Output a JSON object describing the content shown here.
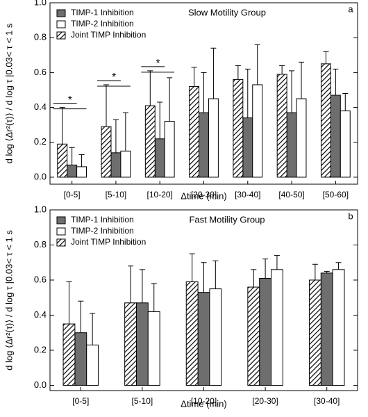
{
  "chart_data": [
    {
      "type": "bar",
      "title": "Slow Motility Group",
      "panel_label": "a",
      "x_label": "Δtime (min)",
      "y_label": "d log ⟨Δr²(τ)⟩ / d log τ |0.03< τ < 1 s",
      "categories": [
        "[0-5]",
        "[5-10]",
        "[10-20]",
        "[20-30]",
        "[30-40]",
        "[40-50]",
        "[50-60]"
      ],
      "significance": [
        "*",
        "*",
        "*",
        null,
        null,
        null,
        null
      ],
      "series": [
        {
          "name": "TIMP-1 Inhibition",
          "color": "#6e6e6e",
          "values": [
            0.07,
            0.14,
            0.22,
            0.37,
            0.34,
            0.37,
            0.47
          ],
          "errors": [
            0.1,
            0.19,
            0.21,
            0.23,
            0.28,
            0.24,
            0.15
          ]
        },
        {
          "name": "TIMP-2 Inhibition",
          "color": "#ffffff",
          "values": [
            0.06,
            0.15,
            0.32,
            0.45,
            0.53,
            0.45,
            0.38
          ],
          "errors": [
            0.07,
            0.22,
            0.25,
            0.29,
            0.23,
            0.21,
            0.1
          ]
        },
        {
          "name": "Joint TIMP Inhibition",
          "color": "#000000",
          "hatch": true,
          "values": [
            0.19,
            0.29,
            0.41,
            0.52,
            0.56,
            0.59,
            0.65
          ],
          "errors": [
            0.21,
            0.24,
            0.2,
            0.11,
            0.08,
            0.05,
            0.07
          ]
        }
      ],
      "ylim": [
        -0.04,
        1.0
      ],
      "yticks": [
        {
          "value": 0,
          "label": "0.0"
        },
        {
          "value": 0.2,
          "label": "0.2"
        },
        {
          "value": 0.4,
          "label": "0.4"
        },
        {
          "value": 0.6,
          "label": "0.6"
        },
        {
          "value": 0.8,
          "label": "0.8"
        },
        {
          "value": 1.0,
          "label": "1.0"
        }
      ]
    },
    {
      "type": "bar",
      "title": "Fast Motility Group",
      "panel_label": "b",
      "x_label": "Δtime (min)",
      "y_label": "d log ⟨Δr²(τ)⟩ / d log τ |0.03< τ < 1 s",
      "categories": [
        "[0-5]",
        "[5-10]",
        "[10-20]",
        "[20-30]",
        "[30-40]"
      ],
      "series": [
        {
          "name": "TIMP-1 Inhibition",
          "color": "#6e6e6e",
          "values": [
            0.3,
            0.47,
            0.53,
            0.61,
            0.64
          ],
          "errors": [
            0.18,
            0.19,
            0.17,
            0.11,
            0.01
          ]
        },
        {
          "name": "TIMP-2 Inhibition",
          "color": "#ffffff",
          "values": [
            0.23,
            0.42,
            0.55,
            0.66,
            0.66
          ],
          "errors": [
            0.18,
            0.16,
            0.16,
            0.08,
            0.04
          ]
        },
        {
          "name": "Joint TIMP Inhibition",
          "color": "#000000",
          "hatch": true,
          "values": [
            0.35,
            0.47,
            0.59,
            0.56,
            0.6
          ],
          "errors": [
            0.24,
            0.21,
            0.16,
            0.1,
            0.09
          ]
        }
      ],
      "ylim": [
        -0.03,
        1.0
      ],
      "yticks": [
        {
          "value": 0,
          "label": "0.0"
        },
        {
          "value": 0.2,
          "label": "0.2"
        },
        {
          "value": 0.4,
          "label": "0.4"
        },
        {
          "value": 0.6,
          "label": "0.6"
        },
        {
          "value": 0.8,
          "label": "0.8"
        },
        {
          "value": 1.0,
          "label": "1.0"
        }
      ]
    }
  ]
}
